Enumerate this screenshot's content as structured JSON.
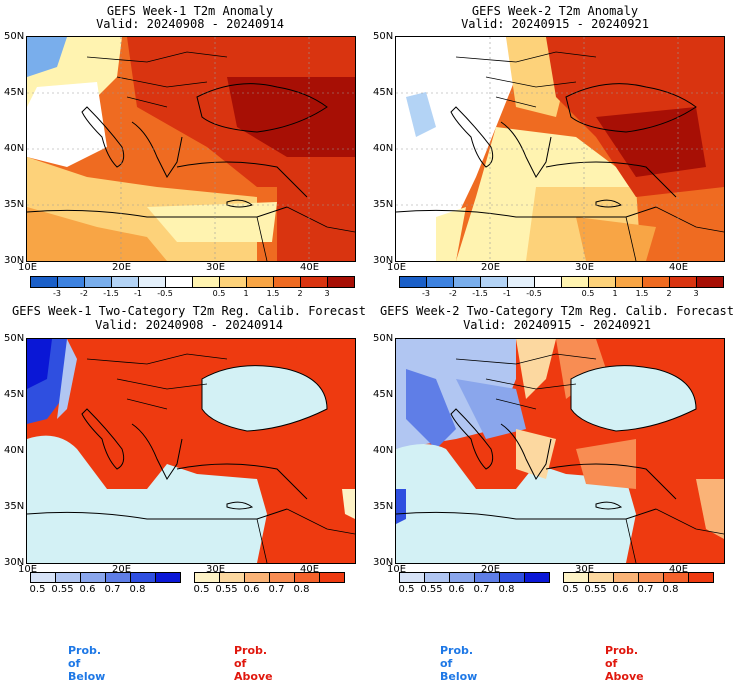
{
  "panels": [
    {
      "title": "GEFS Week-1 T2m Anomaly",
      "valid": "Valid: 20240908 - 20240914"
    },
    {
      "title": "GEFS Week-2 T2m Anomaly",
      "valid": "Valid: 20240915 - 20240921"
    },
    {
      "title": "GEFS Week-1 Two-Category T2m Reg. Calib. Forecast",
      "valid": "Valid: 20240908 - 20240914"
    },
    {
      "title": "GEFS Week-2 Two-Category T2m Reg. Calib. Forecast",
      "valid": "Valid: 20240915 - 20240921"
    }
  ],
  "lat_labels": [
    "50N",
    "45N",
    "40N",
    "35N",
    "30N"
  ],
  "lon_labels": [
    "10E",
    "20E",
    "30E",
    "40E"
  ],
  "anomaly_colorbar": {
    "ticks": [
      "-3",
      "-2",
      "-1.5",
      "-1",
      "-0.5",
      "0.5",
      "1",
      "1.5",
      "2",
      "3"
    ],
    "colors": [
      "#1a5fc8",
      "#3d82e0",
      "#79aeec",
      "#b3d3f5",
      "#e4f0fb",
      "#ffffff",
      "#fff3b0",
      "#fdd27a",
      "#f8a545",
      "#ef6b21",
      "#d93410",
      "#a70f05"
    ]
  },
  "prob_colorbar": {
    "ticks": [
      "0.5",
      "0.55",
      "0.6",
      "0.7",
      "0.8"
    ],
    "below_colors": [
      "#d7e3f7",
      "#b1c6f2",
      "#8aa6ec",
      "#5f7ee7",
      "#2f4fe0",
      "#0a17d6"
    ],
    "above_colors": [
      "#fdf2c6",
      "#fcd8a0",
      "#fab377",
      "#f88d53",
      "#f4622c",
      "#ee3a10"
    ]
  },
  "footer": {
    "below": "Prob. of Below",
    "above": "Prob. of Above"
  },
  "colors": {
    "below_text": "#1e78e6",
    "above_text": "#e0180e",
    "sea": "#d3f1f5"
  }
}
